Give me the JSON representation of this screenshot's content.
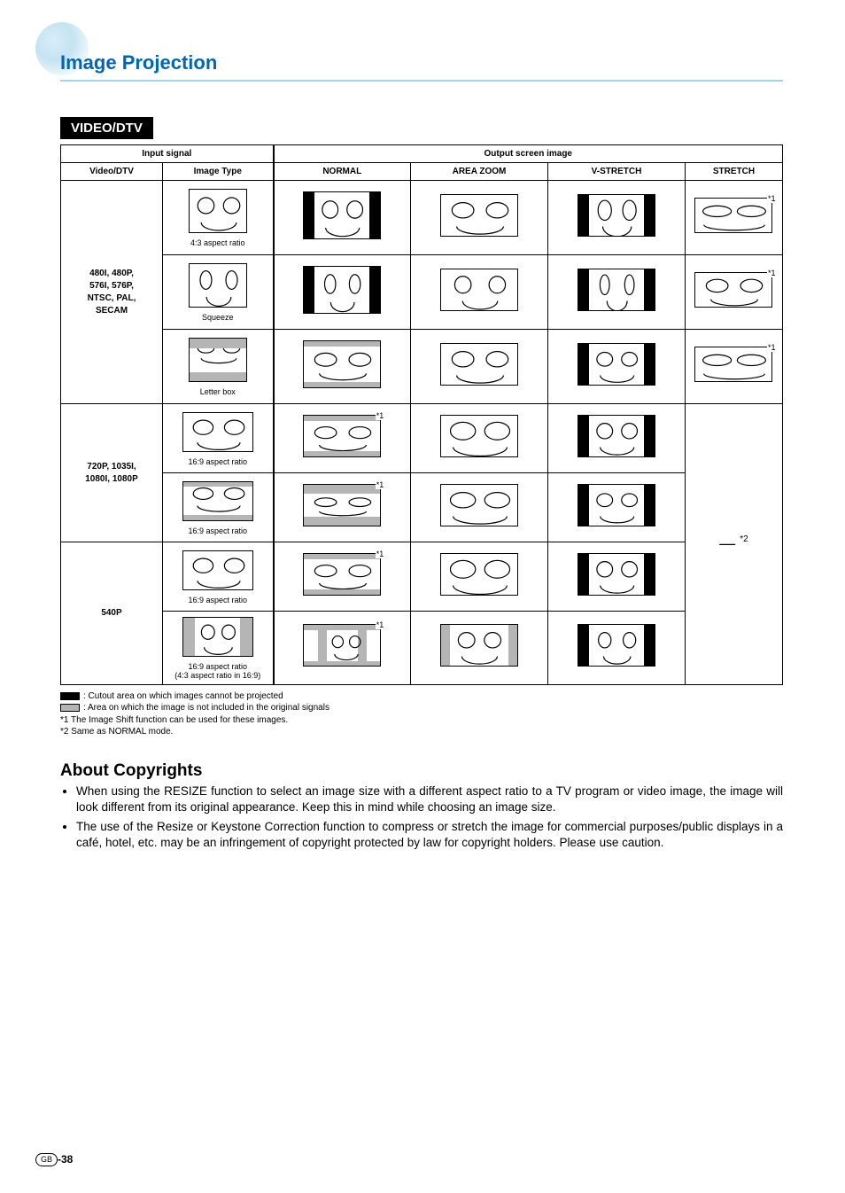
{
  "page": {
    "title": "Image Projection",
    "tab": "VIDEO/DTV",
    "title_color": "#0066b3",
    "underline_color": "#a7d3ea",
    "page_number": "-38",
    "page_badge": "GB"
  },
  "table": {
    "headers": {
      "input_signal": "Input signal",
      "output": "Output screen image",
      "video": "Video/DTV",
      "image_type": "Image Type",
      "normal": "NORMAL",
      "area_zoom": "AREA ZOOM",
      "vstretch": "V-STRETCH",
      "stretch": "STRETCH"
    },
    "row_groups": [
      {
        "label": "480I, 480P,\n576I, 576P,\nNTSC, PAL,\nSECAM",
        "rows": [
          {
            "caption": "4:3 aspect ratio",
            "src_ratio": "4:3",
            "src_style": "plain",
            "out": [
              "pillarbox",
              "wide-plain",
              "pillarbox-tall",
              "wide-squash"
            ],
            "notes": {
              "3": "*1"
            }
          },
          {
            "caption": "Squeeze",
            "src_ratio": "4:3",
            "src_style": "squeeze",
            "out": [
              "pillarbox-sq",
              "wide-sq",
              "pillarbox-sq-tall",
              "wide-plain"
            ],
            "notes": {
              "3": "*1"
            }
          },
          {
            "caption": "Letter box",
            "src_ratio": "4:3",
            "src_style": "letterbox",
            "out": [
              "wide-letter",
              "wide-plain",
              "pillarbox-lb",
              "wide-squash"
            ],
            "notes": {
              "3": "*1"
            }
          }
        ]
      },
      {
        "label": "720P, 1035I,\n1080I, 1080P",
        "rows": [
          {
            "caption": "16:9 aspect ratio",
            "src_ratio": "16:9",
            "src_style": "wide",
            "out": [
              "wide-gray",
              "wide-big",
              "pillarbox-wide",
              "dash"
            ],
            "notes": {
              "0": "*1"
            }
          },
          {
            "caption": "16:9 aspect ratio",
            "src_ratio": "16:9",
            "src_style": "wide-lb",
            "out": [
              "wide-gray-lb",
              "wide-big-lb",
              "pillarbox-wide-lb",
              "dash"
            ],
            "notes": {
              "0": "*1"
            }
          }
        ],
        "stretch_note": "*2"
      },
      {
        "label": "540P",
        "rows": [
          {
            "caption": "16:9 aspect ratio",
            "src_ratio": "16:9",
            "src_style": "wide",
            "out": [
              "wide-gray",
              "wide-big",
              "pillarbox-wide",
              "dash"
            ],
            "notes": {
              "0": "*1"
            }
          },
          {
            "caption": "16:9 aspect ratio\n(4:3 aspect ratio in 16:9)",
            "src_ratio": "16:9",
            "src_style": "wide-43",
            "out": [
              "wide-gray-43",
              "wide-big-43",
              "pillarbox-wide-43",
              "dash"
            ],
            "notes": {
              "0": "*1"
            }
          }
        ]
      }
    ],
    "stretch_dash": "—",
    "gray_color": "#b5b5b5"
  },
  "legend": {
    "black": ": Cutout area on which images cannot be projected",
    "gray": ": Area on which the image is not included in the original signals",
    "n1": "*1 The Image Shift function can be used for these images.",
    "n2": "*2 Same as NORMAL mode."
  },
  "about": {
    "heading": "About Copyrights",
    "items": [
      "When using the RESIZE function to select an image size with a different aspect ratio to a TV program or video image, the image will look different from its original appearance. Keep this in mind while choosing an image size.",
      "The use of the Resize or Keystone Correction function to compress or stretch the image for commercial purposes/public displays in a café, hotel, etc. may be an infringement of copyright protected by law for copyright holders. Please use caution."
    ]
  }
}
